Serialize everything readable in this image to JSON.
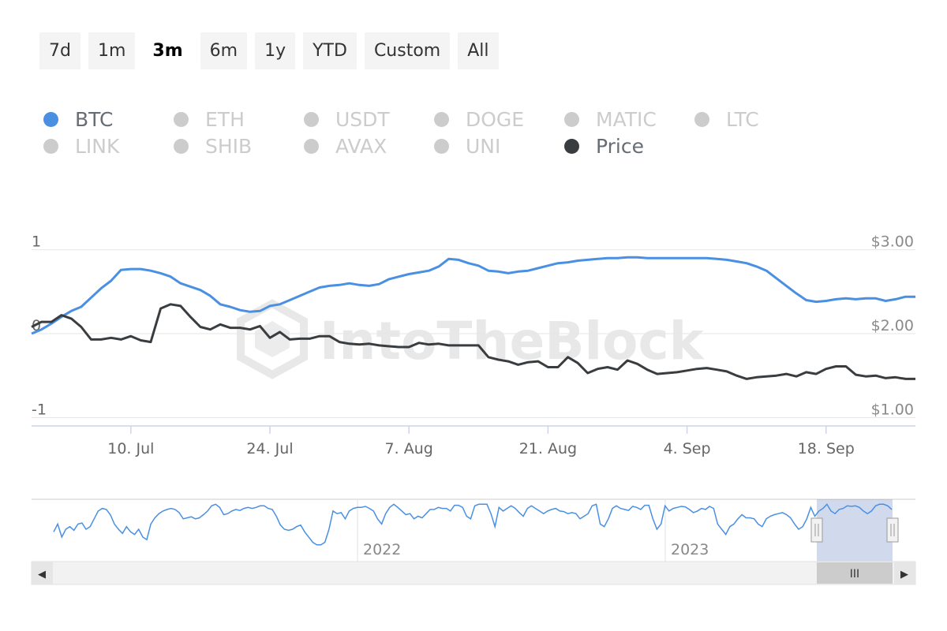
{
  "range_selector": {
    "buttons": [
      "7d",
      "1m",
      "3m",
      "6m",
      "1y",
      "YTD",
      "Custom",
      "All"
    ],
    "active": "3m"
  },
  "legend": {
    "items": [
      {
        "label": "BTC",
        "color": "#4a90e2",
        "on": true
      },
      {
        "label": "ETH",
        "color": "#cccccc",
        "on": false
      },
      {
        "label": "USDT",
        "color": "#cccccc",
        "on": false
      },
      {
        "label": "DOGE",
        "color": "#cccccc",
        "on": false
      },
      {
        "label": "MATIC",
        "color": "#cccccc",
        "on": false
      },
      {
        "label": "LTC",
        "color": "#cccccc",
        "on": false
      },
      {
        "label": "LINK",
        "color": "#cccccc",
        "on": false
      },
      {
        "label": "SHIB",
        "color": "#cccccc",
        "on": false
      },
      {
        "label": "AVAX",
        "color": "#cccccc",
        "on": false
      },
      {
        "label": "UNI",
        "color": "#cccccc",
        "on": false
      },
      {
        "label": "Price",
        "color": "#3a3d40",
        "on": true
      }
    ]
  },
  "watermark": "IntoTheBlock",
  "chart_data": {
    "type": "line",
    "x_ticks": [
      "10. Jul",
      "24. Jul",
      "7. Aug",
      "21. Aug",
      "4. Sep",
      "18. Sep"
    ],
    "x_tick_days": [
      10,
      24,
      38,
      52,
      66,
      80
    ],
    "x_range": [
      0,
      89
    ],
    "y_left": {
      "ticks": [
        "1",
        "0",
        "-1"
      ],
      "tick_values": [
        1,
        0,
        -1
      ],
      "range": [
        -1.1,
        1.1
      ]
    },
    "y_right": {
      "ticks": [
        "$3.00",
        "$2.00",
        "$1.00"
      ],
      "tick_values": [
        3,
        2,
        1
      ],
      "range": [
        0.9,
        3.1
      ]
    },
    "grid": true,
    "series": [
      {
        "name": "BTC",
        "axis": "left",
        "color": "#4a90e2",
        "x": [
          0,
          1,
          2,
          3,
          4,
          5,
          6,
          7,
          8,
          9,
          10,
          11,
          12,
          13,
          14,
          15,
          16,
          17,
          18,
          19,
          20,
          21,
          22,
          23,
          24,
          25,
          26,
          27,
          28,
          29,
          30,
          31,
          32,
          33,
          34,
          35,
          36,
          37,
          38,
          39,
          40,
          41,
          42,
          43,
          44,
          45,
          46,
          47,
          48,
          49,
          50,
          51,
          52,
          53,
          54,
          55,
          56,
          57,
          58,
          59,
          60,
          61,
          62,
          63,
          64,
          65,
          66,
          67,
          68,
          69,
          70,
          71,
          72,
          73,
          74,
          75,
          76,
          77,
          78,
          79,
          80,
          81,
          82,
          83,
          84,
          85,
          86,
          87,
          88,
          89
        ],
        "values": [
          0.0,
          0.05,
          0.12,
          0.2,
          0.27,
          0.32,
          0.43,
          0.54,
          0.63,
          0.76,
          0.77,
          0.77,
          0.75,
          0.72,
          0.68,
          0.6,
          0.56,
          0.52,
          0.45,
          0.35,
          0.32,
          0.28,
          0.26,
          0.27,
          0.33,
          0.35,
          0.4,
          0.45,
          0.5,
          0.55,
          0.57,
          0.58,
          0.6,
          0.58,
          0.57,
          0.59,
          0.65,
          0.68,
          0.71,
          0.73,
          0.75,
          0.8,
          0.89,
          0.88,
          0.84,
          0.81,
          0.75,
          0.74,
          0.72,
          0.74,
          0.75,
          0.78,
          0.81,
          0.84,
          0.85,
          0.87,
          0.88,
          0.89,
          0.9,
          0.9,
          0.91,
          0.91,
          0.9,
          0.9,
          0.9,
          0.9,
          0.9,
          0.9,
          0.9,
          0.89,
          0.88,
          0.86,
          0.84,
          0.8,
          0.75,
          0.66,
          0.57,
          0.48,
          0.4,
          0.38,
          0.39,
          0.41,
          0.42,
          0.41,
          0.42,
          0.42,
          0.39,
          0.41,
          0.44,
          0.44
        ]
      },
      {
        "name": "Price",
        "axis": "right",
        "color": "#3a3d40",
        "x": [
          0,
          1,
          2,
          3,
          4,
          5,
          6,
          7,
          8,
          9,
          10,
          11,
          12,
          13,
          14,
          15,
          16,
          17,
          18,
          19,
          20,
          21,
          22,
          23,
          24,
          25,
          26,
          27,
          28,
          29,
          30,
          31,
          32,
          33,
          34,
          35,
          36,
          37,
          38,
          39,
          40,
          41,
          42,
          43,
          44,
          45,
          46,
          47,
          48,
          49,
          50,
          51,
          52,
          53,
          54,
          55,
          56,
          57,
          58,
          59,
          60,
          61,
          62,
          63,
          64,
          65,
          66,
          67,
          68,
          69,
          70,
          71,
          72,
          73,
          74,
          75,
          76,
          77,
          78,
          79,
          80,
          81,
          82,
          83,
          84,
          85,
          86,
          87,
          88,
          89
        ],
        "values": [
          2.08,
          2.14,
          2.14,
          2.22,
          2.18,
          2.08,
          1.93,
          1.93,
          1.95,
          1.93,
          1.97,
          1.92,
          1.9,
          2.3,
          2.35,
          2.33,
          2.2,
          2.08,
          2.05,
          2.11,
          2.07,
          2.07,
          2.05,
          2.09,
          1.95,
          2.02,
          1.93,
          1.94,
          1.94,
          1.97,
          1.97,
          1.9,
          1.88,
          1.87,
          1.88,
          1.86,
          1.85,
          1.84,
          1.84,
          1.89,
          1.87,
          1.88,
          1.86,
          1.86,
          1.86,
          1.86,
          1.72,
          1.69,
          1.67,
          1.63,
          1.66,
          1.67,
          1.6,
          1.6,
          1.72,
          1.65,
          1.53,
          1.58,
          1.6,
          1.57,
          1.68,
          1.64,
          1.57,
          1.52,
          1.53,
          1.54,
          1.56,
          1.58,
          1.59,
          1.57,
          1.55,
          1.5,
          1.46,
          1.48,
          1.49,
          1.5,
          1.52,
          1.49,
          1.54,
          1.52,
          1.58,
          1.61,
          1.61,
          1.51,
          1.49,
          1.5,
          1.47,
          1.48,
          1.46,
          1.46
        ]
      }
    ]
  },
  "navigator": {
    "year_labels": [
      "2022",
      "2023"
    ],
    "values": [
      0.45,
      0.6,
      0.35,
      0.5,
      0.55,
      0.48,
      0.6,
      0.62,
      0.5,
      0.55,
      0.7,
      0.85,
      0.9,
      0.88,
      0.78,
      0.6,
      0.5,
      0.42,
      0.55,
      0.45,
      0.4,
      0.5,
      0.35,
      0.3,
      0.6,
      0.72,
      0.8,
      0.85,
      0.88,
      0.9,
      0.88,
      0.82,
      0.7,
      0.72,
      0.74,
      0.7,
      0.72,
      0.78,
      0.85,
      0.95,
      0.98,
      0.92,
      0.78,
      0.8,
      0.85,
      0.88,
      0.86,
      0.9,
      0.92,
      0.9,
      0.92,
      0.95,
      0.95,
      0.9,
      0.88,
      0.75,
      0.58,
      0.5,
      0.48,
      0.5,
      0.55,
      0.58,
      0.45,
      0.35,
      0.25,
      0.2,
      0.2,
      0.25,
      0.5,
      0.85,
      0.8,
      0.82,
      0.7,
      0.85,
      0.9,
      0.92,
      0.92,
      0.94,
      0.9,
      0.85,
      0.7,
      0.6,
      0.8,
      0.92,
      0.98,
      0.92,
      0.85,
      0.78,
      0.8,
      0.7,
      0.75,
      0.72,
      0.8,
      0.88,
      0.88,
      0.92,
      0.9,
      0.9,
      0.85,
      0.96,
      0.96,
      0.92,
      0.75,
      0.7,
      0.95,
      0.98,
      0.98,
      0.98,
      0.8,
      0.55,
      0.92,
      0.85,
      0.9,
      0.95,
      0.9,
      0.82,
      0.75,
      0.9,
      0.95,
      0.9,
      0.85,
      0.8,
      0.85,
      0.88,
      0.9,
      0.85,
      0.84,
      0.8,
      0.82,
      0.8,
      0.7,
      0.75,
      0.8,
      0.95,
      0.98,
      0.6,
      0.55,
      0.7,
      0.9,
      0.95,
      0.9,
      0.88,
      0.86,
      0.94,
      0.92,
      0.88,
      0.96,
      0.96,
      0.7,
      0.5,
      0.6,
      0.95,
      0.85,
      0.9,
      0.92,
      0.94,
      0.93,
      0.88,
      0.82,
      0.85,
      0.9,
      0.88,
      0.94,
      0.9,
      0.6,
      0.5,
      0.4,
      0.55,
      0.6,
      0.7,
      0.78,
      0.72,
      0.72,
      0.7,
      0.6,
      0.55,
      0.7,
      0.75,
      0.78,
      0.8,
      0.82,
      0.78,
      0.72,
      0.6,
      0.5,
      0.55,
      0.7,
      0.92,
      0.75,
      0.85,
      0.9,
      0.98,
      0.85,
      0.8,
      0.88,
      0.9,
      0.95,
      0.94,
      0.95,
      0.92,
      0.85,
      0.8,
      0.85,
      0.95,
      0.98,
      0.98,
      0.95,
      0.88
    ]
  },
  "scrollbar": {
    "left_arrow": "◀",
    "right_arrow": "▶",
    "thumb_grip": "III"
  }
}
